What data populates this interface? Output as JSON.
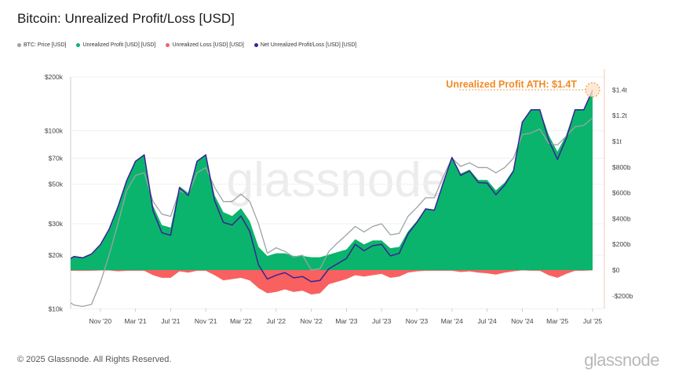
{
  "title": "Bitcoin: Unrealized Profit/Loss [USD]",
  "legend": [
    {
      "label": "BTC: Price [USD]",
      "color": "#9aa3a8"
    },
    {
      "label": "Unrealized Profit [USD] [USD]",
      "color": "#0bb46c"
    },
    {
      "label": "Unrealized Loss [USD] [USD]",
      "color": "#f8615f"
    },
    {
      "label": "Net Unrealized Profit/Loss [USD] [USD]",
      "color": "#3b2296"
    }
  ],
  "watermark": "glassnode",
  "footer": "© 2025 Glassnode. All Rights Reserved.",
  "logo": "glassnode",
  "annotation": {
    "text": "Unrealized Profit ATH: $1.4T",
    "color": "#f08a24",
    "date": "2025-07",
    "value": 1400
  },
  "chart_data": {
    "type": "area",
    "left_axis": {
      "scale": "log",
      "range": [
        10000,
        200000
      ],
      "ticks": [
        {
          "v": 200000,
          "label": "$200k"
        },
        {
          "v": 100000,
          "label": "$100k"
        },
        {
          "v": 70000,
          "label": "$70k"
        },
        {
          "v": 50000,
          "label": "$50k"
        },
        {
          "v": 30000,
          "label": "$30k"
        },
        {
          "v": 20000,
          "label": "$20k"
        },
        {
          "v": 10000,
          "label": "$10k"
        }
      ]
    },
    "right_axis": {
      "scale": "linear",
      "unit": "billion USD",
      "ticks": [
        {
          "v": 1400,
          "label": "$1.4t"
        },
        {
          "v": 1200,
          "label": "$1.2t"
        },
        {
          "v": 1000,
          "label": "$1t"
        },
        {
          "v": 800,
          "label": "$800b"
        },
        {
          "v": 600,
          "label": "$600b"
        },
        {
          "v": 400,
          "label": "$400b"
        },
        {
          "v": 200,
          "label": "$200b"
        },
        {
          "v": 0,
          "label": "$0"
        },
        {
          "v": -200,
          "label": "-$200b"
        }
      ]
    },
    "x_ticks": [
      {
        "date": "2020-11",
        "label": "Nov '20"
      },
      {
        "date": "2021-03",
        "label": "Mar '21"
      },
      {
        "date": "2021-07",
        "label": "Jul '21"
      },
      {
        "date": "2021-11",
        "label": "Nov '21"
      },
      {
        "date": "2022-03",
        "label": "Mar '22"
      },
      {
        "date": "2022-07",
        "label": "Jul '22"
      },
      {
        "date": "2022-11",
        "label": "Nov '22"
      },
      {
        "date": "2023-03",
        "label": "Mar '23"
      },
      {
        "date": "2023-07",
        "label": "Jul '23"
      },
      {
        "date": "2023-11",
        "label": "Nov '23"
      },
      {
        "date": "2024-03",
        "label": "Mar '24"
      },
      {
        "date": "2024-07",
        "label": "Jul '24"
      },
      {
        "date": "2024-11",
        "label": "Nov '24"
      },
      {
        "date": "2025-03",
        "label": "Mar '25"
      },
      {
        "date": "2025-07",
        "label": "Jul '25"
      }
    ],
    "start": "2020-07",
    "grid": true,
    "series": [
      {
        "name": "BTC: Price [USD]",
        "axis": "left",
        "values": [
          10800,
          10500,
          10300,
          10600,
          14000,
          20000,
          30000,
          46000,
          56000,
          58000,
          40000,
          34000,
          33000,
          46000,
          44000,
          58000,
          62000,
          48000,
          40000,
          40000,
          44000,
          40000,
          30000,
          20500,
          22000,
          21000,
          19500,
          20000,
          16500,
          16800,
          21000,
          23500,
          26000,
          29000,
          27000,
          29000,
          30000,
          26000,
          26500,
          33000,
          37000,
          42000,
          42000,
          55000,
          70000,
          63000,
          66000,
          62000,
          62000,
          58000,
          62000,
          70000,
          95000,
          97000,
          102000,
          85000,
          83000,
          93000,
          105000,
          107000,
          118000
        ]
      },
      {
        "name": "Unrealized Profit [USD] [USD]",
        "axis": "right",
        "values": [
          95,
          110,
          100,
          130,
          200,
          320,
          500,
          700,
          850,
          900,
          500,
          350,
          330,
          650,
          600,
          850,
          900,
          580,
          450,
          420,
          480,
          380,
          180,
          110,
          130,
          130,
          110,
          110,
          100,
          100,
          120,
          140,
          160,
          240,
          200,
          230,
          230,
          170,
          180,
          300,
          380,
          480,
          470,
          680,
          880,
          750,
          780,
          700,
          700,
          620,
          680,
          780,
          1150,
          1250,
          1250,
          1050,
          920,
          1050,
          1250,
          1250,
          1400
        ]
      },
      {
        "name": "Unrealized Loss [USD] [USD]",
        "axis": "right",
        "values": [
          -5,
          -5,
          -5,
          -5,
          -3,
          -3,
          -10,
          -5,
          -5,
          -5,
          -40,
          -60,
          -60,
          -10,
          -20,
          -5,
          -5,
          -40,
          -80,
          -70,
          -60,
          -80,
          -140,
          -180,
          -170,
          -150,
          -170,
          -160,
          -190,
          -180,
          -110,
          -90,
          -70,
          -40,
          -50,
          -40,
          -30,
          -60,
          -50,
          -20,
          -10,
          -5,
          -5,
          -5,
          -5,
          -15,
          -10,
          -20,
          -25,
          -35,
          -20,
          -10,
          -2,
          -5,
          -5,
          -40,
          -60,
          -30,
          -5,
          -5,
          -2
        ]
      },
      {
        "name": "Net Unrealized Profit/Loss [USD] [USD]",
        "axis": "right",
        "values": [
          90,
          105,
          95,
          125,
          197,
          317,
          490,
          695,
          845,
          895,
          460,
          290,
          270,
          640,
          580,
          845,
          895,
          540,
          370,
          350,
          420,
          300,
          40,
          -70,
          -40,
          -20,
          -60,
          -50,
          -90,
          -80,
          10,
          50,
          90,
          200,
          150,
          190,
          200,
          110,
          130,
          280,
          370,
          475,
          465,
          675,
          875,
          735,
          770,
          680,
          675,
          585,
          660,
          770,
          1148,
          1245,
          1245,
          1010,
          860,
          1020,
          1245,
          1245,
          1398
        ]
      }
    ]
  }
}
